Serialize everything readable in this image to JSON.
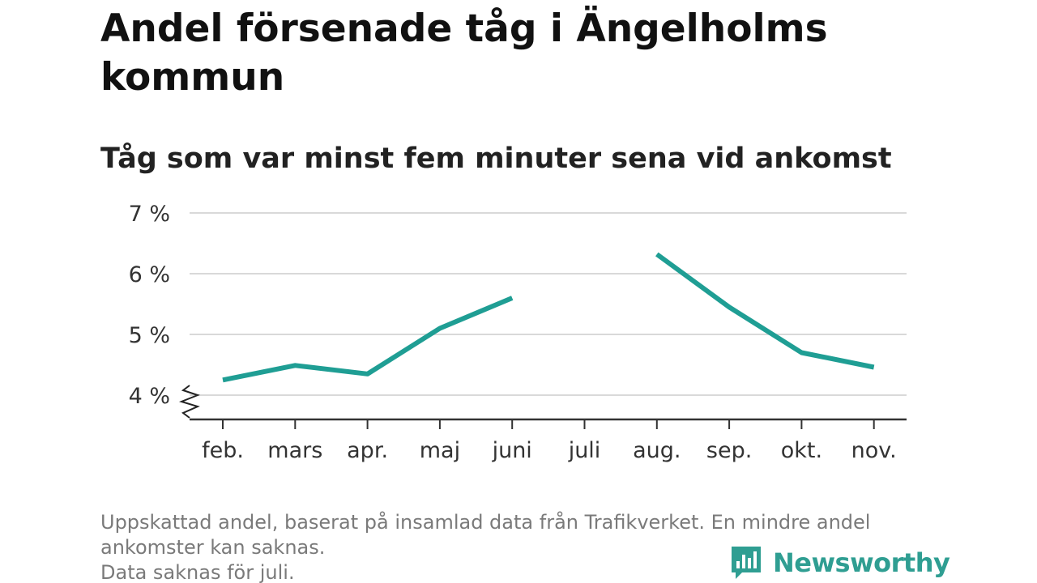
{
  "title": "Andel försenade tåg i Ängelholms kommun",
  "subtitle": "Tåg som var minst fem minuter sena vid ankomst",
  "footnote": {
    "line1": "Uppskattad andel, baserat på insamlad data från Trafikverket. En mindre andel ankomster kan saknas.",
    "line2": "Data saknas för juli."
  },
  "brand": {
    "name": "Newsworthy",
    "color": "#2f9e92",
    "icon": "newsworthy-bar-chart-logo"
  },
  "chart_data": {
    "type": "line",
    "categories": [
      "feb.",
      "mars",
      "apr.",
      "maj",
      "juni",
      "juli",
      "aug.",
      "sep.",
      "okt.",
      "nov."
    ],
    "series": [
      {
        "values": [
          4.25,
          4.49,
          4.35,
          5.1,
          5.6,
          null,
          6.32,
          5.45,
          4.7,
          4.46
        ],
        "color": "#1f9e94"
      }
    ],
    "yticks": [
      4,
      5,
      6,
      7
    ],
    "ytick_labels": [
      "4 %",
      "5 %",
      "6 %",
      "7 %"
    ],
    "ylim": [
      3.6,
      7
    ],
    "y_axis_broken": true,
    "grid": true,
    "xlabel": "",
    "ylabel": ""
  }
}
